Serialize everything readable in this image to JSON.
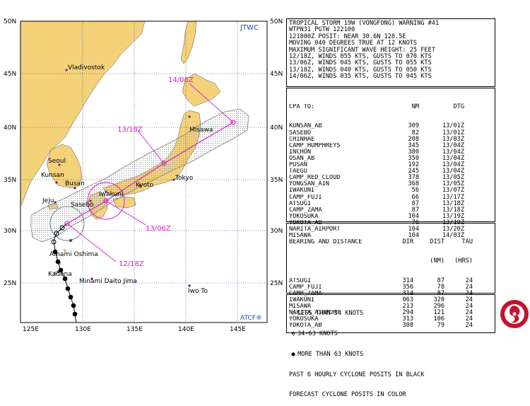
{
  "map": {
    "agency_label": "JTWC",
    "atcf_label": "ATCF®",
    "lat_labels": [
      "50N",
      "45N",
      "40N",
      "35N",
      "30N",
      "25N"
    ],
    "lon_labels": [
      "125E",
      "130E",
      "135E",
      "140E",
      "145E"
    ],
    "places": {
      "vladivostok": "Vladivostok",
      "misawa": "Misawa",
      "seoul": "Seoul",
      "kunsan": "Kunsan",
      "busan": "Busan",
      "jeju": "Jeju",
      "sasebo": "Sasebo",
      "iwakuni": "Iwakuni",
      "kyoto": "Kyoto",
      "tokyo": "Tokyo",
      "amami": "Amami Oshima",
      "kadena": "Kadena",
      "minami": "Minami Daito Jima",
      "iwoto": "Iwo To"
    },
    "forecast_labels": {
      "f1": "14/06Z",
      "f2": "13/18Z",
      "f3": "13/06Z",
      "f4": "12/18Z"
    },
    "colors": {
      "land": "#f4d27a",
      "water": "#ffffff",
      "forecast": "#d020d0",
      "danger_area": "#9aa0a0"
    }
  },
  "header": {
    "line1": "TROPICAL STORM 19W (VONGFONG) WARNING #41",
    "line2": "WTPN31 PGTW 122100",
    "line3": "121800Z POSIT: NEAR 30.6N 128.5E",
    "line4": "MOVING 040 DEGREES TRUE AT 12 KNOTS",
    "line5": "MAXIMUM SIGNIFICANT WAVE HEIGHT: 25 FEET",
    "line6": "12/18Z, WINDS 055 KTS, GUSTS TO 070 KTS",
    "line7": "13/06Z, WINDS 045 KTS, GUSTS TO 055 KTS",
    "line8": "13/18Z, WINDS 040 KTS, GUSTS TO 050 KTS",
    "line9": "14/06Z, WINDS 035 KTS, GUSTS TO 045 KTS"
  },
  "cpa": {
    "headers": [
      "CPA TO:",
      "NM",
      "DTG"
    ],
    "rows": [
      {
        "name": "KUNSAN_AB",
        "nm": "309",
        "dtg": "13/01Z"
      },
      {
        "name": "SASEBO",
        "nm": "82",
        "dtg": "13/01Z"
      },
      {
        "name": "CHINHAE",
        "nm": "208",
        "dtg": "13/03Z"
      },
      {
        "name": "CAMP_HUMPHREYS",
        "nm": "345",
        "dtg": "13/04Z"
      },
      {
        "name": "INCHON",
        "nm": "380",
        "dtg": "13/04Z"
      },
      {
        "name": "OSAN_AB",
        "nm": "350",
        "dtg": "13/04Z"
      },
      {
        "name": "PUSAN",
        "nm": "192",
        "dtg": "13/04Z"
      },
      {
        "name": "TAEGU",
        "nm": "245",
        "dtg": "13/04Z"
      },
      {
        "name": "CAMP_RED_CLOUD",
        "nm": "378",
        "dtg": "13/05Z"
      },
      {
        "name": "YONGSAN_AIN",
        "nm": "368",
        "dtg": "13/05Z"
      },
      {
        "name": "IWAKUNI",
        "nm": "56",
        "dtg": "13/07Z"
      },
      {
        "name": "CAMP_FUJI",
        "nm": "66",
        "dtg": "13/17Z"
      },
      {
        "name": "ATSUGI",
        "nm": "87",
        "dtg": "13/18Z"
      },
      {
        "name": "CAMP_ZAMA",
        "nm": "87",
        "dtg": "13/18Z"
      },
      {
        "name": "YOKOSUKA",
        "nm": "104",
        "dtg": "13/19Z"
      },
      {
        "name": "YOKOTA_AB",
        "nm": "76",
        "dtg": "13/19Z"
      },
      {
        "name": "NARITA_AIRPORT",
        "nm": "104",
        "dtg": "13/20Z"
      },
      {
        "name": "MISAWA",
        "nm": "104",
        "dtg": "14/03Z"
      }
    ]
  },
  "bearing": {
    "headers": [
      "BEARING AND DISTANCE",
      "DIR",
      "DIST",
      "TAU"
    ],
    "subheaders": [
      "(NM)",
      "(HRS)"
    ],
    "rows": [
      {
        "name": "ATSUGI",
        "dir": "314",
        "dist": "87",
        "tau": "24"
      },
      {
        "name": "CAMP_FUJI",
        "dir": "356",
        "dist": "78",
        "tau": "24"
      },
      {
        "name": "CAMP_ZAMA",
        "dir": "314",
        "dist": "87",
        "tau": "24"
      },
      {
        "name": "IWAKUNI",
        "dir": "063",
        "dist": "320",
        "tau": "24"
      },
      {
        "name": "MISAWA",
        "dir": "213",
        "dist": "296",
        "tau": "24"
      },
      {
        "name": "NARITA_AIRPORT",
        "dir": "294",
        "dist": "121",
        "tau": "24"
      },
      {
        "name": "YOKOSUKA",
        "dir": "313",
        "dist": "106",
        "tau": "24"
      },
      {
        "name": "YOKOTA_AB",
        "dir": "308",
        "dist": "79",
        "tau": "24"
      }
    ]
  },
  "legend": {
    "l1": "LESS THAN 34 KNOTS",
    "l2": "34-63 KNOTS",
    "l3": "MORE THAN 63 KNOTS",
    "l4": "PAST 6 HOURLY CYCLONE POSITS IN BLACK",
    "l5": "FORECAST CYCLONE POSITS IN COLOR"
  }
}
